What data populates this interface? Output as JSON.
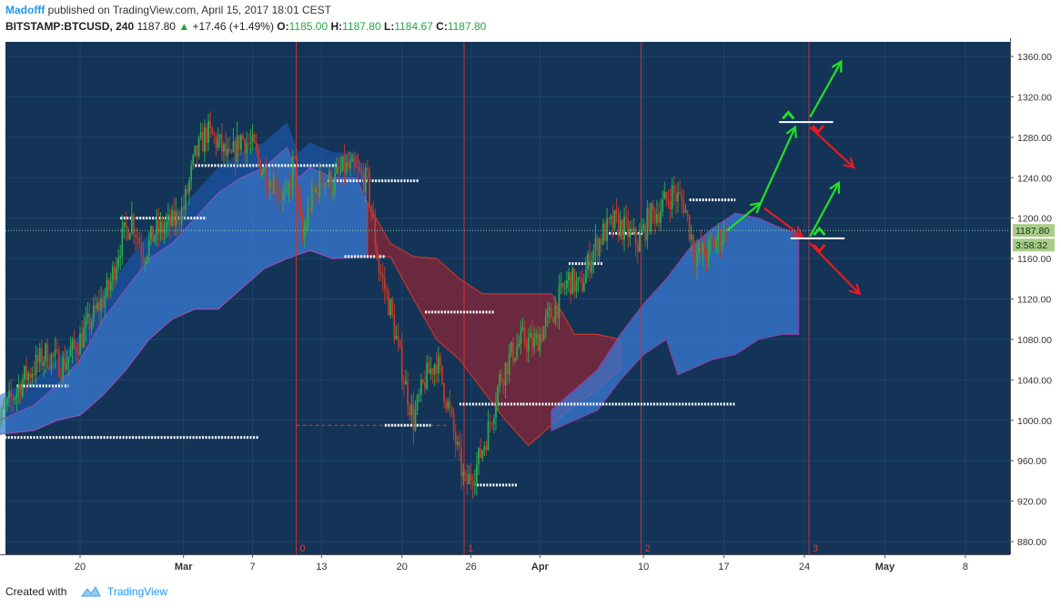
{
  "header": {
    "author": "Madofff",
    "published": "published on TradingView.com, April 15, 2017 18:01 CEST",
    "symbol": "BITSTAMP:BTCUSD, 240",
    "last": "1187.80",
    "change": "+17.46 (+1.49%)",
    "o_label": "O:",
    "o_value": "1185.00",
    "h_label": "H:",
    "h_value": "1187.80",
    "l_label": "L:",
    "l_value": "1184.67",
    "c_label": "C:",
    "c_value": "1187.80"
  },
  "footer": {
    "created_with": "Created with",
    "brand": "TradingView"
  },
  "colors": {
    "background": "#133457",
    "up": "#2ea84a",
    "down": "#c0392b",
    "cloud_blue": "#3a7ad4",
    "cloud_red": "#8a2638",
    "arrow_green": "#22e026",
    "arrow_red": "#e8191f",
    "price_tag": "#a8cd88"
  },
  "chart_data": {
    "type": "candlestick",
    "symbol": "BITSTAMP:BTCUSD",
    "interval": "240",
    "ylim": [
      860,
      1380
    ],
    "y_ticks": [
      880,
      920,
      960,
      1000,
      1040,
      1080,
      1120,
      1160,
      1200,
      1240,
      1280,
      1320,
      1360
    ],
    "x_ticks": [
      {
        "label": "20",
        "day": 20
      },
      {
        "label": "Mar",
        "day": 29
      },
      {
        "label": "7",
        "day": 35
      },
      {
        "label": "13",
        "day": 41
      },
      {
        "label": "20",
        "day": 48
      },
      {
        "label": "26",
        "day": 54
      },
      {
        "label": "Apr",
        "day": 60
      },
      {
        "label": "10",
        "day": 69
      },
      {
        "label": "17",
        "day": 76
      },
      {
        "label": "24",
        "day": 83
      },
      {
        "label": "May",
        "day": 90
      },
      {
        "label": "8",
        "day": 97
      }
    ],
    "last_price": "1187.80",
    "countdown": "3:58:32",
    "cycle_lines": [
      {
        "label": "0",
        "day": 38.8
      },
      {
        "label": "1",
        "day": 53.4
      },
      {
        "label": "2",
        "day": 68.8
      },
      {
        "label": "3",
        "day": 83.4
      }
    ],
    "price_path": [
      [
        12.5,
        990
      ],
      [
        13.5,
        1010
      ],
      [
        15,
        1040
      ],
      [
        17,
        1065
      ],
      [
        18.5,
        1055
      ],
      [
        20,
        1080
      ],
      [
        21.5,
        1110
      ],
      [
        22.5,
        1130
      ],
      [
        23.5,
        1175
      ],
      [
        24.5,
        1200
      ],
      [
        25.5,
        1165
      ],
      [
        26.5,
        1185
      ],
      [
        28,
        1195
      ],
      [
        29,
        1210
      ],
      [
        30,
        1260
      ],
      [
        31,
        1285
      ],
      [
        32,
        1275
      ],
      [
        33,
        1255
      ],
      [
        34,
        1280
      ],
      [
        35,
        1270
      ],
      [
        36,
        1245
      ],
      [
        37,
        1235
      ],
      [
        38,
        1215
      ],
      [
        38.6,
        1260
      ],
      [
        39.3,
        1175
      ],
      [
        40,
        1215
      ],
      [
        41,
        1240
      ],
      [
        42,
        1235
      ],
      [
        43,
        1250
      ],
      [
        44,
        1245
      ],
      [
        45,
        1235
      ],
      [
        46,
        1150
      ],
      [
        47,
        1110
      ],
      [
        48,
        1050
      ],
      [
        49,
        1000
      ],
      [
        50,
        1040
      ],
      [
        51,
        1060
      ],
      [
        52,
        1015
      ],
      [
        53,
        960
      ],
      [
        53.5,
        935
      ],
      [
        54.5,
        955
      ],
      [
        55.5,
        990
      ],
      [
        56.5,
        1040
      ],
      [
        57.5,
        1065
      ],
      [
        58.5,
        1080
      ],
      [
        59.5,
        1075
      ],
      [
        60.5,
        1095
      ],
      [
        61.5,
        1115
      ],
      [
        62.5,
        1140
      ],
      [
        63.5,
        1130
      ],
      [
        64.5,
        1165
      ],
      [
        65.5,
        1185
      ],
      [
        66.5,
        1195
      ],
      [
        67.5,
        1188
      ],
      [
        68.5,
        1175
      ],
      [
        69.5,
        1200
      ],
      [
        70.5,
        1210
      ],
      [
        71.5,
        1225
      ],
      [
        72.5,
        1215
      ],
      [
        73.5,
        1165
      ],
      [
        74.5,
        1165
      ],
      [
        75.5,
        1180
      ],
      [
        76.2,
        1187.8
      ]
    ],
    "support_resistance_levels": [
      {
        "price": 983,
        "day_start": 11.5,
        "day_end": 35.5
      },
      {
        "price": 1034,
        "day_start": 14.5,
        "day_end": 19
      },
      {
        "price": 1200,
        "day_start": 23.5,
        "day_end": 31
      },
      {
        "price": 1252,
        "day_start": 30,
        "day_end": 42.5
      },
      {
        "price": 1237,
        "day_start": 41.5,
        "day_end": 49.5
      },
      {
        "price": 1162,
        "day_start": 43,
        "day_end": 46.5
      },
      {
        "price": 1107,
        "day_start": 50,
        "day_end": 56
      },
      {
        "price": 1016,
        "day_start": 53,
        "day_end": 58.5
      },
      {
        "price": 995,
        "day_start": 46.5,
        "day_end": 50.5
      },
      {
        "price": 936,
        "day_start": 54.5,
        "day_end": 58
      },
      {
        "price": 1155,
        "day_start": 62.5,
        "day_end": 65.5
      },
      {
        "price": 1185,
        "day_start": 66,
        "day_end": 69
      },
      {
        "price": 1218,
        "day_start": 73,
        "day_end": 77
      },
      {
        "price": 1016,
        "day_start": 58.5,
        "day_end": 77
      }
    ],
    "dashed_level": {
      "price": 995,
      "day_start": 38.8,
      "day_end": 52
    },
    "cloud_blue_upper": [
      [
        12,
        995
      ],
      [
        16,
        1015
      ],
      [
        18,
        1035
      ],
      [
        20,
        1060
      ],
      [
        22,
        1100
      ],
      [
        24,
        1130
      ],
      [
        26,
        1160
      ],
      [
        28,
        1175
      ],
      [
        30,
        1200
      ],
      [
        32,
        1225
      ],
      [
        34,
        1240
      ],
      [
        36,
        1250
      ],
      [
        38,
        1270
      ],
      [
        39,
        1240
      ],
      [
        40,
        1250
      ],
      [
        42,
        1240
      ],
      [
        44,
        1240
      ],
      [
        45,
        1215
      ]
    ],
    "cloud_blue_lower": [
      [
        12,
        985
      ],
      [
        16,
        990
      ],
      [
        18,
        1000
      ],
      [
        20,
        1005
      ],
      [
        22,
        1025
      ],
      [
        24,
        1050
      ],
      [
        26,
        1080
      ],
      [
        28,
        1100
      ],
      [
        30,
        1110
      ],
      [
        32,
        1110
      ],
      [
        34,
        1130
      ],
      [
        36,
        1150
      ],
      [
        38,
        1160
      ],
      [
        40,
        1168
      ],
      [
        42,
        1160
      ],
      [
        45,
        1162
      ]
    ],
    "cloud_red_upper": [
      [
        45,
        1215
      ],
      [
        47,
        1175
      ],
      [
        49,
        1162
      ],
      [
        51,
        1160
      ],
      [
        53,
        1140
      ],
      [
        55,
        1125
      ],
      [
        57,
        1125
      ],
      [
        59,
        1125
      ],
      [
        61,
        1125
      ],
      [
        63,
        1085
      ],
      [
        65,
        1085
      ],
      [
        67,
        1080
      ]
    ],
    "cloud_red_lower": [
      [
        45,
        1162
      ],
      [
        47,
        1162
      ],
      [
        49,
        1120
      ],
      [
        51,
        1080
      ],
      [
        53,
        1060
      ],
      [
        55,
        1030
      ],
      [
        57,
        1000
      ],
      [
        59,
        975
      ],
      [
        61,
        995
      ],
      [
        63,
        1015
      ],
      [
        65,
        1030
      ],
      [
        67,
        1050
      ]
    ],
    "cloud2_blue_upper": [
      [
        61,
        1010
      ],
      [
        63,
        1030
      ],
      [
        65,
        1050
      ],
      [
        67,
        1085
      ],
      [
        69,
        1115
      ],
      [
        71,
        1140
      ],
      [
        73,
        1170
      ],
      [
        75,
        1190
      ],
      [
        77,
        1205
      ],
      [
        79,
        1200
      ],
      [
        81,
        1190
      ],
      [
        82.5,
        1185
      ]
    ],
    "cloud2_blue_lower": [
      [
        61,
        990
      ],
      [
        63,
        1000
      ],
      [
        65,
        1010
      ],
      [
        67,
        1040
      ],
      [
        69,
        1065
      ],
      [
        71,
        1080
      ],
      [
        72,
        1045
      ],
      [
        73,
        1050
      ],
      [
        75,
        1060
      ],
      [
        77,
        1065
      ],
      [
        79,
        1080
      ],
      [
        81,
        1085
      ],
      [
        82.5,
        1085
      ]
    ],
    "projection_levels": [
      {
        "price": 1295,
        "day_start": 80.8,
        "day_end": 85.5
      },
      {
        "price": 1180,
        "day_start": 81.8,
        "day_end": 86.5
      }
    ],
    "green_arrows": [
      [
        [
          76.3,
          1188
        ],
        [
          79.2,
          1215
        ]
      ],
      [
        [
          79.2,
          1215
        ],
        [
          82.2,
          1290
        ]
      ],
      [
        [
          83.5,
          1300
        ],
        [
          86.2,
          1355
        ]
      ],
      [
        [
          83.5,
          1182
        ],
        [
          86.0,
          1235
        ]
      ]
    ],
    "red_arrows": [
      [
        [
          79.5,
          1210
        ],
        [
          82.8,
          1182
        ]
      ],
      [
        [
          83.5,
          1290
        ],
        [
          87.3,
          1250
        ]
      ],
      [
        [
          83.5,
          1175
        ],
        [
          87.8,
          1125
        ]
      ]
    ],
    "green_chevrons": [
      [
        81.6,
        1302
      ],
      [
        84.3,
        1187
      ]
    ],
    "red_chevrons": [
      [
        84.2,
        1288
      ],
      [
        84.3,
        1170
      ]
    ]
  }
}
